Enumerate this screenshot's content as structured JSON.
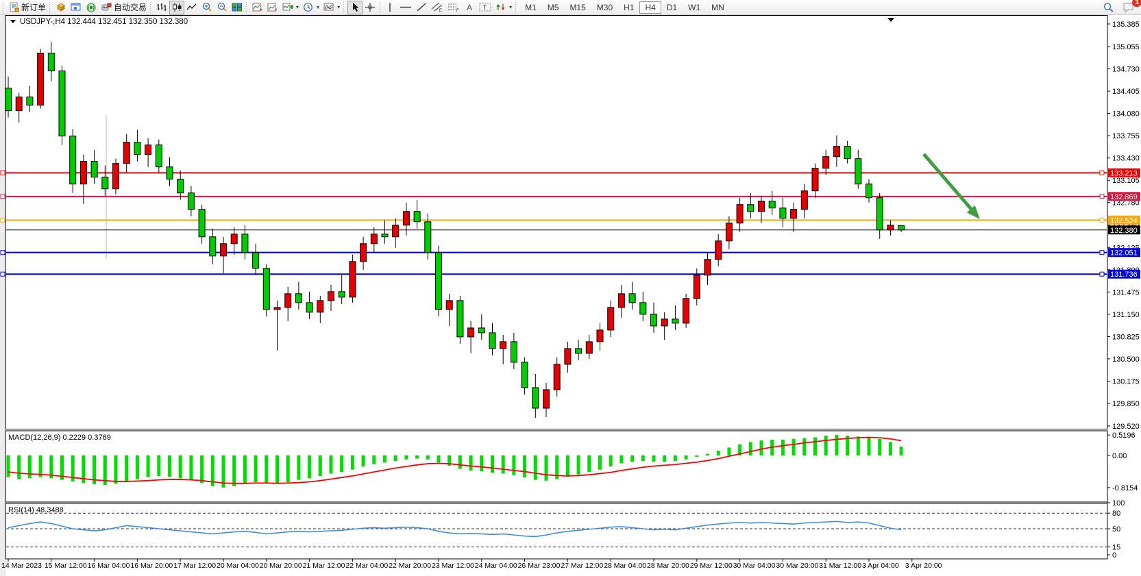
{
  "toolbar": {
    "new_order_label": "新订单",
    "autotrade_label": "自动交易",
    "timeframes": [
      "M1",
      "M5",
      "M15",
      "M30",
      "H1",
      "H4",
      "D1",
      "W1",
      "MN"
    ],
    "active_timeframe": "H4",
    "notification_count": "1",
    "icons": [
      "new-order-icon",
      "profile-icon",
      "terminal-icon",
      "signals-icon",
      "autotrading-icon",
      "bar-chart-icon",
      "candlestick-icon",
      "line-chart-icon",
      "zoom-in-icon",
      "zoom-out-icon",
      "tile-windows-icon",
      "indicator-window-icon",
      "indicator-list-icon",
      "add-indicator-icon",
      "periods-clock-icon",
      "templates-icon",
      "cursor-icon",
      "crosshair-icon",
      "vertical-line-icon",
      "horizontal-line-icon",
      "trendline-icon",
      "equidistant-channel-icon",
      "fibonacci-icon",
      "text-icon",
      "label-icon",
      "arrows-icon",
      "search-icon",
      "chat-icon"
    ]
  },
  "chart": {
    "header": {
      "title": "USDJPY-,H4 132.444 132.451 132.350 132.380",
      "symbol": "USDJPY-,H4",
      "open": "132.444",
      "high": "132.451",
      "low": "132.350",
      "close": "132.380"
    },
    "colors": {
      "bull": "#e60000",
      "bear": "#00cc00",
      "wick": "#000000",
      "macd_hist": "#00dd00",
      "macd_signal": "#ff0000",
      "rsi_line": "#3e8ede",
      "arrow": "#3f9e3f"
    },
    "price_axis": {
      "max": 135.385,
      "min": 129.52,
      "ticks": [
        "135.385",
        "135.055",
        "134.730",
        "134.405",
        "134.080",
        "133.755",
        "133.430",
        "133.105",
        "132.780",
        "132.450",
        "132.125",
        "131.800",
        "131.475",
        "131.150",
        "130.825",
        "130.500",
        "130.175",
        "129.850",
        "129.520"
      ]
    },
    "hlines": [
      {
        "price": 133.213,
        "label": "133.213",
        "color": "#f40000"
      },
      {
        "price": 132.869,
        "label": "132.869",
        "color": "#d81744"
      },
      {
        "price": 132.524,
        "label": "132.524",
        "color": "#ffa800"
      },
      {
        "price": 132.051,
        "label": "132.051",
        "color": "#0000e8"
      },
      {
        "price": 131.736,
        "label": "131.736",
        "color": "#0000e8"
      }
    ],
    "current_price": {
      "price": 132.38,
      "label": "132.380",
      "color": "#000000"
    },
    "candles": [
      [
        134.45,
        134.62,
        134.02,
        134.12
      ],
      [
        134.12,
        134.38,
        133.95,
        134.32
      ],
      [
        134.32,
        134.48,
        134.1,
        134.2
      ],
      [
        134.2,
        135.02,
        134.15,
        134.96
      ],
      [
        134.96,
        135.12,
        134.55,
        134.7
      ],
      [
        134.7,
        134.78,
        133.62,
        133.75
      ],
      [
        133.75,
        133.85,
        132.92,
        133.05
      ],
      [
        133.05,
        133.48,
        132.76,
        133.38
      ],
      [
        133.38,
        133.55,
        133.05,
        133.15
      ],
      [
        133.15,
        133.32,
        132.88,
        132.98
      ],
      [
        132.98,
        133.42,
        132.9,
        133.35
      ],
      [
        133.35,
        133.78,
        133.22,
        133.66
      ],
      [
        133.66,
        133.84,
        133.38,
        133.48
      ],
      [
        133.48,
        133.72,
        133.3,
        133.62
      ],
      [
        133.62,
        133.7,
        133.22,
        133.3
      ],
      [
        133.3,
        133.44,
        133.02,
        133.12
      ],
      [
        133.12,
        133.25,
        132.82,
        132.92
      ],
      [
        132.92,
        133.02,
        132.58,
        132.68
      ],
      [
        132.68,
        132.75,
        132.18,
        132.28
      ],
      [
        132.28,
        132.4,
        131.88,
        132.0
      ],
      [
        132.0,
        132.28,
        131.75,
        132.18
      ],
      [
        132.18,
        132.42,
        132.02,
        132.32
      ],
      [
        132.32,
        132.45,
        131.95,
        132.05
      ],
      [
        132.05,
        132.18,
        131.72,
        131.82
      ],
      [
        131.82,
        131.88,
        131.12,
        131.22
      ],
      [
        131.22,
        131.35,
        130.62,
        131.25
      ],
      [
        131.25,
        131.55,
        131.05,
        131.45
      ],
      [
        131.45,
        131.62,
        131.22,
        131.32
      ],
      [
        131.32,
        131.48,
        131.08,
        131.18
      ],
      [
        131.18,
        131.42,
        131.02,
        131.35
      ],
      [
        131.35,
        131.58,
        131.2,
        131.48
      ],
      [
        131.48,
        131.72,
        131.3,
        131.4
      ],
      [
        131.4,
        132.02,
        131.32,
        131.92
      ],
      [
        131.92,
        132.28,
        131.8,
        132.18
      ],
      [
        132.18,
        132.42,
        132.05,
        132.32
      ],
      [
        132.32,
        132.52,
        132.18,
        132.28
      ],
      [
        132.28,
        132.55,
        132.12,
        132.45
      ],
      [
        132.45,
        132.78,
        132.3,
        132.65
      ],
      [
        132.65,
        132.82,
        132.4,
        132.5
      ],
      [
        132.5,
        132.62,
        131.95,
        132.05
      ],
      [
        132.05,
        132.15,
        131.12,
        131.22
      ],
      [
        131.22,
        131.45,
        130.98,
        131.35
      ],
      [
        131.35,
        131.42,
        130.72,
        130.82
      ],
      [
        130.82,
        131.05,
        130.58,
        130.95
      ],
      [
        130.95,
        131.15,
        130.78,
        130.88
      ],
      [
        130.88,
        131.02,
        130.55,
        130.65
      ],
      [
        130.65,
        130.85,
        130.42,
        130.75
      ],
      [
        130.75,
        130.88,
        130.35,
        130.45
      ],
      [
        130.45,
        130.52,
        129.98,
        130.08
      ],
      [
        130.08,
        130.28,
        129.64,
        129.78
      ],
      [
        129.78,
        130.15,
        129.65,
        130.05
      ],
      [
        130.05,
        130.52,
        129.95,
        130.42
      ],
      [
        130.42,
        130.75,
        130.3,
        130.65
      ],
      [
        130.65,
        130.78,
        130.48,
        130.58
      ],
      [
        130.58,
        130.85,
        130.5,
        130.75
      ],
      [
        130.75,
        131.02,
        130.62,
        130.92
      ],
      [
        130.92,
        131.35,
        130.82,
        131.25
      ],
      [
        131.25,
        131.58,
        131.1,
        131.45
      ],
      [
        131.45,
        131.62,
        131.22,
        131.32
      ],
      [
        131.32,
        131.48,
        131.05,
        131.15
      ],
      [
        131.15,
        131.32,
        130.88,
        130.98
      ],
      [
        130.98,
        131.18,
        130.78,
        131.08
      ],
      [
        131.08,
        131.28,
        130.92,
        131.02
      ],
      [
        131.02,
        131.45,
        130.95,
        131.38
      ],
      [
        131.38,
        131.82,
        131.28,
        131.72
      ],
      [
        131.72,
        132.05,
        131.58,
        131.95
      ],
      [
        131.95,
        132.32,
        131.85,
        132.22
      ],
      [
        132.22,
        132.58,
        132.1,
        132.48
      ],
      [
        132.48,
        132.85,
        132.35,
        132.75
      ],
      [
        132.75,
        132.92,
        132.55,
        132.65
      ],
      [
        132.65,
        132.88,
        132.48,
        132.8
      ],
      [
        132.8,
        132.95,
        132.6,
        132.7
      ],
      [
        132.7,
        132.85,
        132.42,
        132.55
      ],
      [
        132.55,
        132.78,
        132.35,
        132.68
      ],
      [
        132.68,
        133.05,
        132.55,
        132.95
      ],
      [
        132.95,
        133.35,
        132.85,
        133.28
      ],
      [
        133.28,
        133.55,
        133.18,
        133.45
      ],
      [
        133.45,
        133.76,
        133.3,
        133.6
      ],
      [
        133.6,
        133.68,
        133.35,
        133.42
      ],
      [
        133.42,
        133.55,
        132.98,
        133.05
      ],
      [
        133.05,
        133.12,
        132.78,
        132.85
      ],
      [
        132.85,
        132.92,
        132.25,
        132.38
      ],
      [
        132.38,
        132.52,
        132.3,
        132.45
      ],
      [
        132.444,
        132.451,
        132.35,
        132.38
      ]
    ],
    "time_labels": [
      "14 Mar 2023",
      "15 Mar 12:00",
      "16 Mar 04:00",
      "16 Mar 20:00",
      "17 Mar 12:00",
      "20 Mar 04:00",
      "20 Mar 20:00",
      "21 Mar 12:00",
      "22 Mar 04:00",
      "22 Mar 20:00",
      "23 Mar 12:00",
      "24 Mar 04:00",
      "26 Mar 23:00",
      "27 Mar 12:00",
      "28 Mar 04:00",
      "28 Mar 20:00",
      "29 Mar 12:00",
      "30 Mar 04:00",
      "30 Mar 20:00",
      "31 Mar 12:00",
      "3 Apr 04:00",
      "3 Apr 20:00"
    ],
    "macd": {
      "label": "MACD(12,26,9) 0.2229 0.3769",
      "axis": [
        "0.5196",
        "0.00",
        "-0.8154"
      ],
      "axis_values": [
        0.5196,
        0,
        -0.8154
      ],
      "histogram": [
        -0.55,
        -0.6,
        -0.58,
        -0.55,
        -0.58,
        -0.62,
        -0.66,
        -0.7,
        -0.73,
        -0.75,
        -0.72,
        -0.68,
        -0.6,
        -0.55,
        -0.52,
        -0.54,
        -0.58,
        -0.63,
        -0.7,
        -0.78,
        -0.8154,
        -0.78,
        -0.72,
        -0.68,
        -0.7,
        -0.72,
        -0.68,
        -0.62,
        -0.58,
        -0.52,
        -0.46,
        -0.42,
        -0.36,
        -0.28,
        -0.22,
        -0.18,
        -0.14,
        -0.1,
        -0.08,
        -0.1,
        -0.18,
        -0.26,
        -0.34,
        -0.38,
        -0.4,
        -0.44,
        -0.46,
        -0.5,
        -0.56,
        -0.62,
        -0.64,
        -0.6,
        -0.54,
        -0.48,
        -0.42,
        -0.36,
        -0.28,
        -0.2,
        -0.16,
        -0.14,
        -0.16,
        -0.16,
        -0.14,
        -0.1,
        -0.04,
        0.04,
        0.12,
        0.2,
        0.28,
        0.34,
        0.38,
        0.4,
        0.4,
        0.42,
        0.44,
        0.46,
        0.5,
        0.5196,
        0.5,
        0.48,
        0.46,
        0.42,
        0.34,
        0.2229
      ],
      "signal": [
        -0.42,
        -0.45,
        -0.47,
        -0.48,
        -0.5,
        -0.53,
        -0.56,
        -0.59,
        -0.62,
        -0.64,
        -0.66,
        -0.66,
        -0.65,
        -0.64,
        -0.62,
        -0.61,
        -0.61,
        -0.62,
        -0.64,
        -0.67,
        -0.7,
        -0.71,
        -0.71,
        -0.7,
        -0.7,
        -0.71,
        -0.7,
        -0.69,
        -0.67,
        -0.64,
        -0.6,
        -0.56,
        -0.52,
        -0.47,
        -0.42,
        -0.37,
        -0.32,
        -0.28,
        -0.24,
        -0.21,
        -0.2,
        -0.21,
        -0.24,
        -0.27,
        -0.29,
        -0.32,
        -0.35,
        -0.38,
        -0.41,
        -0.45,
        -0.49,
        -0.51,
        -0.52,
        -0.51,
        -0.49,
        -0.46,
        -0.43,
        -0.38,
        -0.34,
        -0.3,
        -0.27,
        -0.25,
        -0.23,
        -0.2,
        -0.17,
        -0.13,
        -0.08,
        -0.02,
        0.04,
        0.1,
        0.16,
        0.21,
        0.25,
        0.28,
        0.32,
        0.35,
        0.38,
        0.41,
        0.43,
        0.45,
        0.46,
        0.45,
        0.42,
        0.3769
      ]
    },
    "rsi": {
      "label": "RSI(14) 48.3488",
      "axis": [
        "100",
        "80",
        "50",
        "15",
        "0"
      ],
      "levels": [
        80,
        50,
        15
      ],
      "values": [
        52,
        56,
        60,
        63,
        60,
        55,
        50,
        48,
        46,
        48,
        52,
        56,
        54,
        52,
        50,
        48,
        46,
        44,
        42,
        40,
        42,
        44,
        45,
        43,
        40,
        42,
        44,
        45,
        44,
        45,
        46,
        47,
        49,
        51,
        52,
        51,
        52,
        53,
        52,
        50,
        45,
        42,
        40,
        41,
        40,
        39,
        40,
        38,
        36,
        35,
        38,
        42,
        45,
        47,
        49,
        51,
        53,
        54,
        52,
        50,
        48,
        49,
        48,
        51,
        54,
        57,
        59,
        61,
        62,
        61,
        62,
        61,
        60,
        59,
        61,
        62,
        63,
        64,
        62,
        63,
        61,
        56,
        51,
        48.3488
      ]
    }
  }
}
